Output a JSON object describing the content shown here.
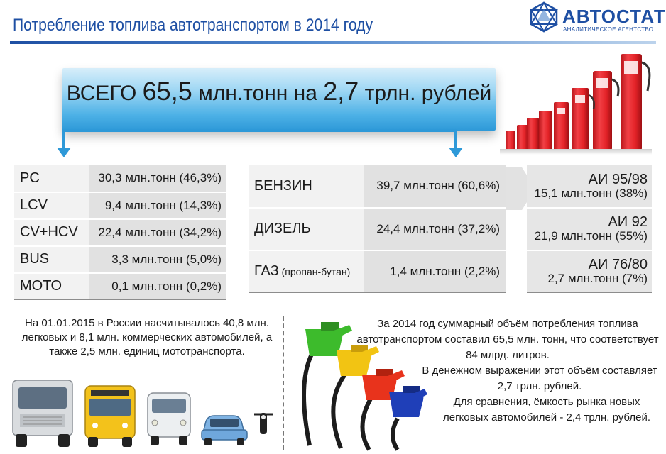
{
  "header": {
    "title": "Потребление топлива автотранспортом в 2014 году",
    "logo_name": "АВТОСТАТ",
    "logo_subtitle": "АНАЛИТИЧЕСКОЕ АГЕНТСТВО"
  },
  "banner": {
    "prefix": "ВСЕГО ",
    "value1": "65,5",
    "mid": " млн.тонн на ",
    "value2": "2,7",
    "suffix": " трлн. рублей"
  },
  "vehicles": [
    {
      "type": "PC",
      "value": "30,3 млн.тонн (46,3%)"
    },
    {
      "type": "LCV",
      "value": "9,4 млн.тонн (14,3%)"
    },
    {
      "type": "CV+HCV",
      "value": "22,4 млн.тонн (34,2%)"
    },
    {
      "type": "BUS",
      "value": "3,3 млн.тонн (5,0%)"
    },
    {
      "type": "МОТО",
      "value": "0,1 млн.тонн (0,2%)"
    }
  ],
  "fuels": [
    {
      "type": "БЕНЗИН",
      "note": "",
      "value": "39,7 млн.тонн (60,6%)"
    },
    {
      "type": "ДИЗЕЛЬ",
      "note": "",
      "value": "24,4 млн.тонн (37,2%)"
    },
    {
      "type": "ГАЗ",
      "note": " (пропан-бутан)",
      "value": "1,4 млн.тонн (2,2%)"
    }
  ],
  "grades": [
    {
      "name": "АИ 95/98",
      "value": "15,1 млн.тонн (38%)"
    },
    {
      "name": "АИ 92",
      "value": "21,9 млн.тонн (55%)"
    },
    {
      "name": "АИ 76/80",
      "value": "2,7 млн.тонн (7%)"
    }
  ],
  "notes": {
    "fleet": "На 01.01.2015 в России насчитывалось 40,8 млн. легковых и 8,1 млн. коммерческих автомобилей, а также 2,5 млн. единиц мототранспорта.",
    "stats_1": "За 2014 год суммарный объём потребления топлива автотранспортом составил 65,5 млн. тонн, что соответствует 84 млрд. литров.",
    "stats_2": "В денежном выражении этот объём составляет 2,7 трлн. рублей.",
    "stats_3": "Для сравнения, ёмкость рынка новых легковых автомобилей - 2,4 трлн. рублей."
  },
  "colors": {
    "brand_blue": "#1e4fa3",
    "banner_blue": "#2e99d8",
    "pump_red": "#e32227",
    "nozzle_green": "#3dbb2c",
    "nozzle_yellow": "#f2c413",
    "nozzle_red": "#e8331c",
    "nozzle_blue": "#1f3fb8"
  },
  "icons": [
    "autostat-logo-icon",
    "fuel-pump-icon",
    "fuel-nozzle-icon",
    "truck-icon",
    "bus-icon",
    "van-icon",
    "car-icon",
    "motorcycle-icon"
  ]
}
